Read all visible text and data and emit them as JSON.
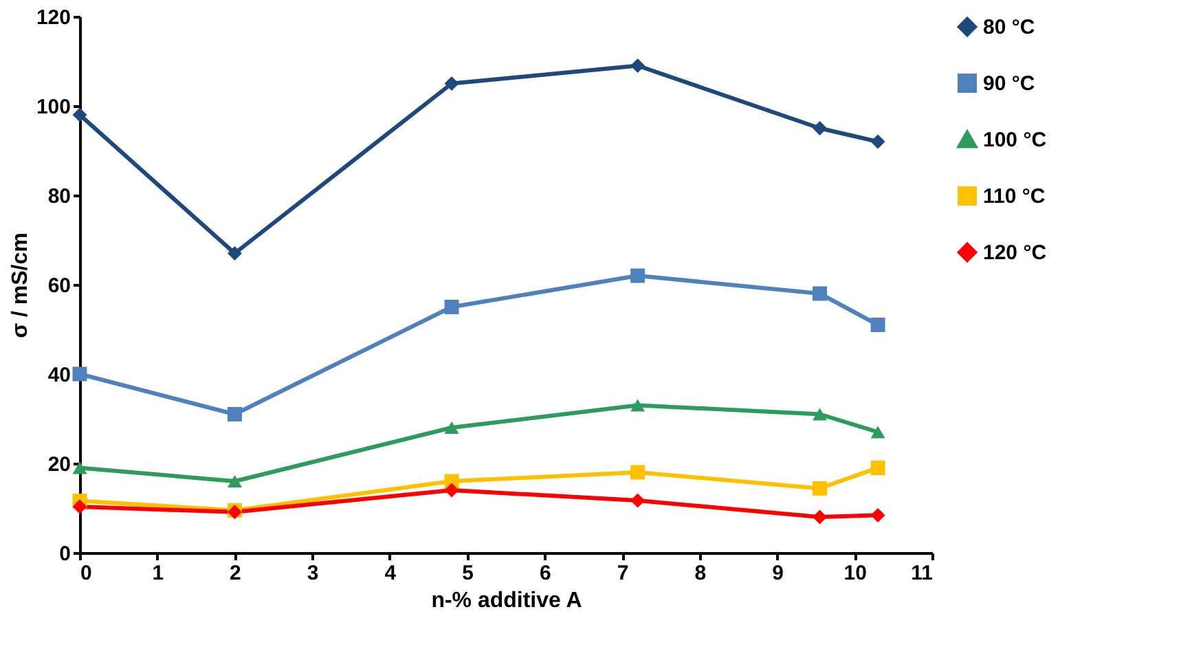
{
  "chart_data": {
    "type": "line",
    "xlabel": "n-% additive A",
    "ylabel": "σ / mS/cm",
    "x": [
      0,
      2,
      4.8,
      7.2,
      9.55,
      10.3
    ],
    "series": [
      {
        "name": "80 °C",
        "color": "#1f497d",
        "marker": "diamond",
        "values": [
          98,
          67,
          105,
          109,
          95,
          92
        ]
      },
      {
        "name": "90 °C",
        "color": "#4f81bd",
        "marker": "square",
        "values": [
          40,
          31,
          55,
          62,
          58,
          51
        ]
      },
      {
        "name": "100 °C",
        "color": "#2e9b5e",
        "marker": "triangle",
        "values": [
          19,
          16,
          28,
          33,
          31,
          27
        ]
      },
      {
        "name": "110 °C",
        "color": "#ffc000",
        "marker": "square",
        "values": [
          11.6,
          9.5,
          16,
          18,
          14.4,
          19
        ]
      },
      {
        "name": "120 °C",
        "color": "#ff0000",
        "marker": "diamond",
        "values": [
          10.3,
          9.1,
          14,
          11.7,
          8,
          8.4
        ]
      }
    ],
    "xlim": [
      0,
      11
    ],
    "xticks": [
      0,
      1,
      2,
      3,
      4,
      5,
      6,
      7,
      8,
      9,
      10,
      11
    ],
    "ylim": [
      0,
      120
    ],
    "yticks": [
      0,
      20,
      40,
      60,
      80,
      100,
      120
    ],
    "grid": false,
    "legend": "right",
    "line_style": "solid"
  }
}
